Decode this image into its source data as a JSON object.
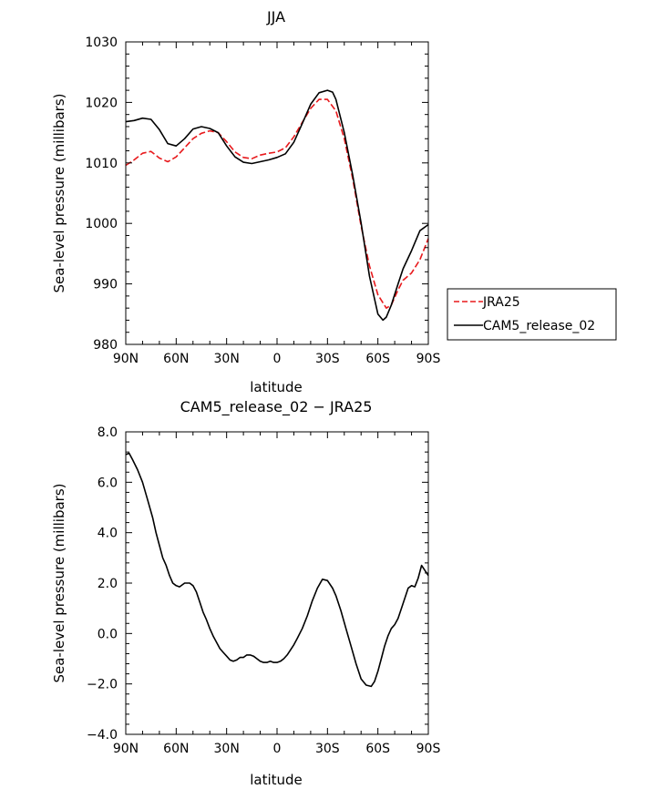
{
  "chart_data": [
    {
      "type": "line",
      "title": "JJA",
      "xlabel": "latitude",
      "ylabel": "Sea-level pressure (millibars)",
      "xlim": [
        90,
        -90
      ],
      "ylim": [
        980,
        1030
      ],
      "xticks": [
        90,
        60,
        30,
        0,
        -30,
        -60,
        -90
      ],
      "xticklabels": [
        "90N",
        "60N",
        "30N",
        "0",
        "30S",
        "60S",
        "90S"
      ],
      "yticks": [
        980,
        990,
        1000,
        1010,
        1020,
        1030
      ],
      "yticklabels": [
        "980",
        "990",
        "1000",
        "1010",
        "1020",
        "1030"
      ],
      "legend_position": "right",
      "series": [
        {
          "name": "JRA25",
          "color": "#e8191c",
          "dash": "dashed",
          "x": [
            90,
            85,
            80,
            75,
            70,
            65,
            60,
            55,
            50,
            45,
            40,
            35,
            30,
            25,
            20,
            15,
            10,
            5,
            0,
            -5,
            -10,
            -15,
            -20,
            -25,
            -30,
            -35,
            -40,
            -45,
            -50,
            -55,
            -60,
            -65,
            -68,
            -72,
            -75,
            -80,
            -85,
            -90
          ],
          "values": [
            1009.6,
            1010.5,
            1011.6,
            1011.9,
            1010.8,
            1010.2,
            1011.0,
            1012.5,
            1014.0,
            1014.9,
            1015.3,
            1015.0,
            1013.5,
            1011.8,
            1010.9,
            1010.7,
            1011.3,
            1011.6,
            1011.8,
            1012.5,
            1014.3,
            1016.7,
            1019.0,
            1020.5,
            1020.5,
            1018.6,
            1014.0,
            1007.4,
            999.6,
            993.0,
            988.2,
            986.0,
            986.5,
            989.0,
            990.6,
            991.8,
            994.0,
            997.5
          ]
        },
        {
          "name": "CAM5_release_02",
          "color": "#000000",
          "dash": "solid",
          "x": [
            90,
            85,
            80,
            75,
            70,
            65,
            60,
            55,
            50,
            45,
            40,
            35,
            30,
            25,
            20,
            15,
            10,
            5,
            0,
            -5,
            -10,
            -15,
            -20,
            -25,
            -30,
            -33,
            -35,
            -40,
            -45,
            -50,
            -55,
            -60,
            -63,
            -65,
            -68,
            -72,
            -75,
            -80,
            -85,
            -90
          ],
          "values": [
            1016.8,
            1017.0,
            1017.4,
            1017.2,
            1015.5,
            1013.2,
            1012.8,
            1014.0,
            1015.6,
            1016.0,
            1015.7,
            1015.0,
            1012.8,
            1011.0,
            1010.1,
            1009.9,
            1010.2,
            1010.5,
            1010.9,
            1011.5,
            1013.4,
            1016.5,
            1019.7,
            1021.6,
            1022.0,
            1021.7,
            1020.5,
            1015.0,
            1008.0,
            1000.1,
            991.3,
            985.0,
            984.0,
            984.5,
            986.5,
            990.0,
            992.5,
            995.5,
            998.8,
            999.8
          ]
        }
      ]
    },
    {
      "type": "line",
      "title": "CAM5_release_02 − JRA25",
      "xlabel": "latitude",
      "ylabel": "Sea-level pressure (millibars)",
      "xlim": [
        90,
        -90
      ],
      "ylim": [
        -4,
        8
      ],
      "xticks": [
        90,
        60,
        30,
        0,
        -30,
        -60,
        -90
      ],
      "xticklabels": [
        "90N",
        "60N",
        "30N",
        "0",
        "30S",
        "60S",
        "90S"
      ],
      "yticks": [
        -4,
        -2,
        0,
        2,
        4,
        6,
        8
      ],
      "yticklabels": [
        "−4.0",
        "−2.0",
        "0.0",
        "2.0",
        "4.0",
        "6.0",
        "8.0"
      ],
      "series": [
        {
          "color": "#000000",
          "dash": "solid",
          "x": [
            90,
            88,
            86,
            83,
            80,
            77,
            74,
            72,
            70,
            68,
            66,
            64,
            62,
            60,
            58,
            55,
            52,
            50,
            48,
            46,
            44,
            42,
            40,
            38,
            36,
            34,
            32,
            30,
            28,
            26,
            24,
            22,
            20,
            18,
            16,
            14,
            12,
            10,
            8,
            6,
            4,
            2,
            0,
            -2,
            -4,
            -6,
            -8,
            -10,
            -12,
            -15,
            -18,
            -21,
            -24,
            -27,
            -30,
            -33,
            -35,
            -38,
            -41,
            -44,
            -47,
            -50,
            -53,
            -56,
            -58,
            -60,
            -62,
            -64,
            -66,
            -68,
            -70,
            -72,
            -74,
            -76,
            -78,
            -80,
            -82,
            -84,
            -86,
            -87,
            -88,
            -89,
            -90
          ],
          "values": [
            7.1,
            7.15,
            6.9,
            6.5,
            6.0,
            5.3,
            4.6,
            4.0,
            3.5,
            3.0,
            2.7,
            2.3,
            2.0,
            1.9,
            1.85,
            2.0,
            2.0,
            1.9,
            1.65,
            1.25,
            0.85,
            0.55,
            0.2,
            -0.1,
            -0.35,
            -0.6,
            -0.75,
            -0.9,
            -1.05,
            -1.1,
            -1.05,
            -0.95,
            -0.95,
            -0.85,
            -0.85,
            -0.9,
            -1.0,
            -1.1,
            -1.15,
            -1.15,
            -1.1,
            -1.15,
            -1.15,
            -1.1,
            -1.0,
            -0.85,
            -0.65,
            -0.45,
            -0.2,
            0.2,
            0.7,
            1.3,
            1.8,
            2.15,
            2.1,
            1.8,
            1.5,
            0.9,
            0.2,
            -0.5,
            -1.2,
            -1.8,
            -2.05,
            -2.1,
            -1.9,
            -1.5,
            -1.0,
            -0.5,
            -0.1,
            0.2,
            0.35,
            0.6,
            1.0,
            1.4,
            1.8,
            1.9,
            1.85,
            2.2,
            2.7,
            2.6,
            2.5,
            2.4,
            2.3
          ]
        }
      ]
    }
  ]
}
